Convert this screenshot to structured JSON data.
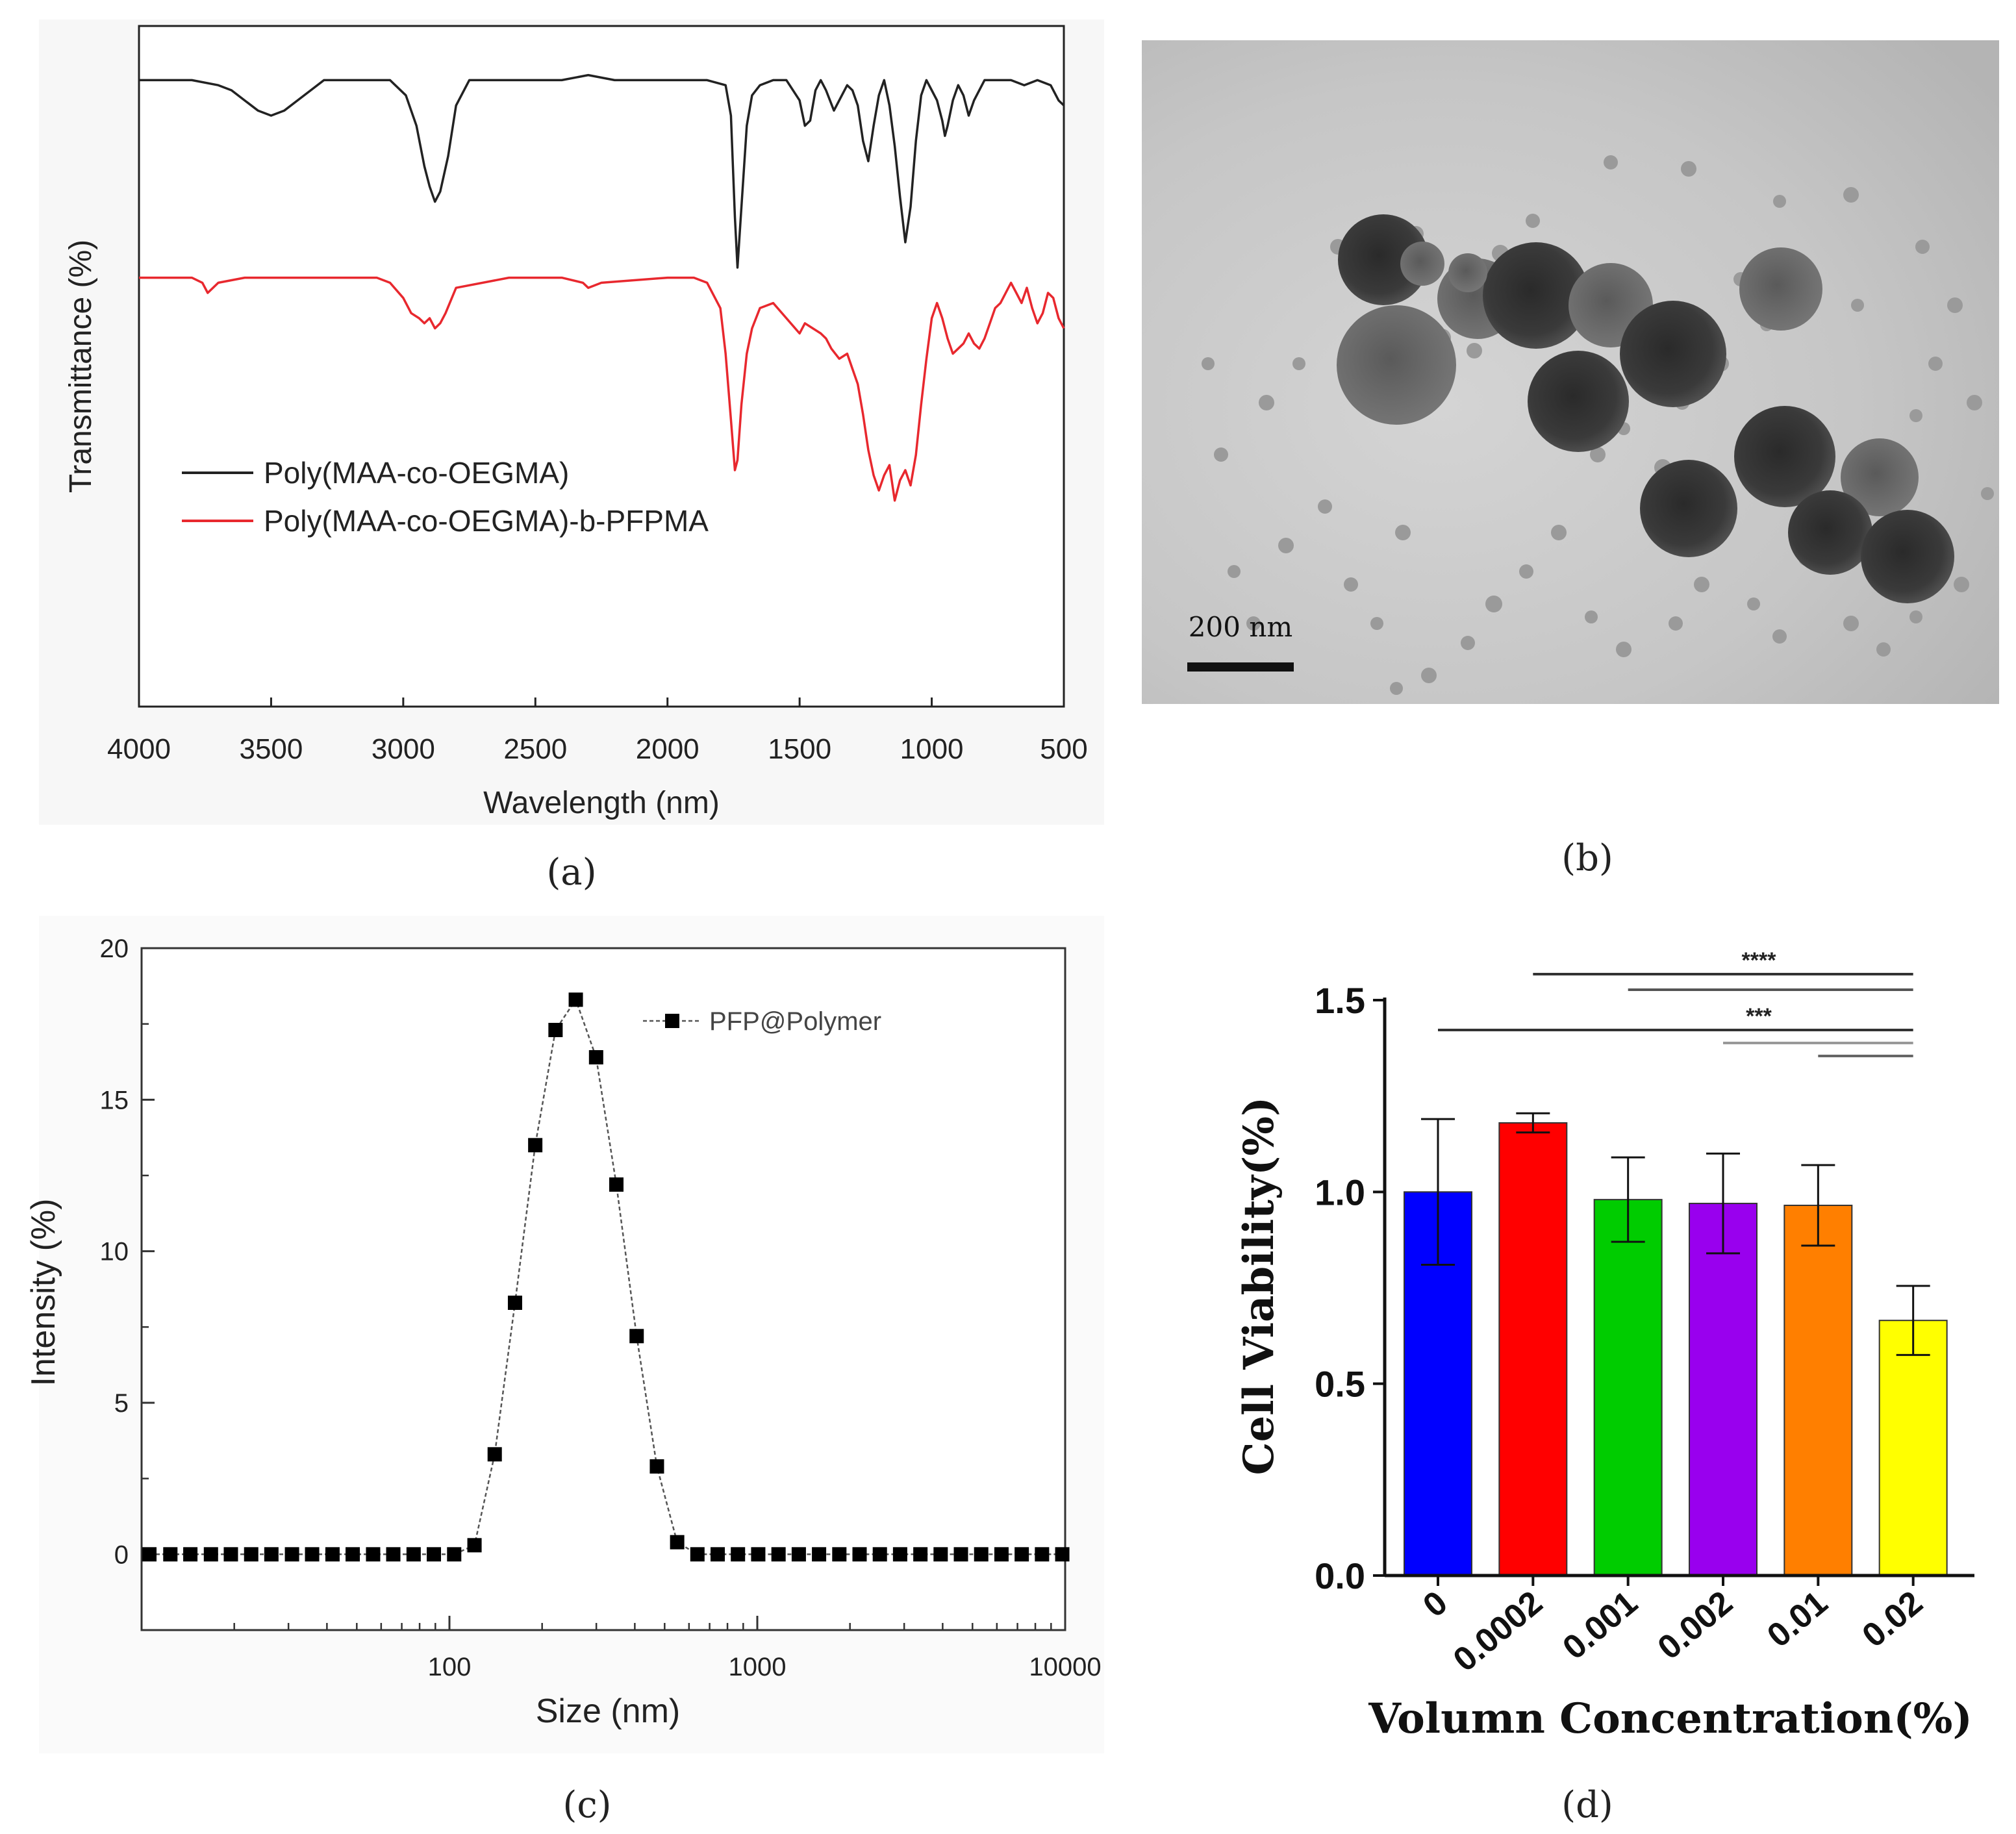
{
  "figure": {
    "panel_labels": [
      "(a)",
      "(b)",
      "(c)",
      "(d)"
    ]
  },
  "chart_data": [
    {
      "id": "a",
      "type": "line",
      "title": "",
      "xlabel": "Wavelength (nm)",
      "ylabel": "Transmittance (%)",
      "xlim": [
        4000,
        500
      ],
      "x_ticks": [
        4000,
        3500,
        3000,
        2500,
        2000,
        1500,
        1000,
        500
      ],
      "y_ticks_shown": false,
      "legend_position": "lower-left",
      "series": [
        {
          "name": "Poly(MAA-co-OEGMA)",
          "color": "#222222",
          "x": [
            4000,
            3800,
            3700,
            3650,
            3600,
            3550,
            3500,
            3450,
            3400,
            3350,
            3300,
            3200,
            3050,
            2990,
            2950,
            2920,
            2900,
            2880,
            2860,
            2830,
            2800,
            2750,
            2600,
            2400,
            2300,
            2200,
            2000,
            1850,
            1780,
            1760,
            1745,
            1735,
            1720,
            1700,
            1680,
            1650,
            1600,
            1550,
            1500,
            1480,
            1460,
            1440,
            1420,
            1400,
            1370,
            1340,
            1320,
            1300,
            1280,
            1260,
            1240,
            1220,
            1200,
            1180,
            1160,
            1140,
            1120,
            1100,
            1080,
            1060,
            1040,
            1020,
            1000,
            980,
            960,
            950,
            940,
            920,
            900,
            880,
            860,
            840,
            800,
            750,
            700,
            650,
            600,
            550,
            520,
            500
          ],
          "y": [
            97,
            97,
            96,
            95,
            93,
            91,
            90,
            91,
            93,
            95,
            97,
            97,
            97,
            94,
            88,
            80,
            76,
            73,
            75,
            82,
            92,
            97,
            97,
            97,
            98,
            97,
            97,
            97,
            96,
            90,
            70,
            60,
            72,
            88,
            94,
            96,
            97,
            97,
            93,
            88,
            89,
            95,
            97,
            95,
            91,
            94,
            96,
            95,
            92,
            85,
            81,
            88,
            94,
            97,
            92,
            84,
            74,
            65,
            72,
            85,
            94,
            97,
            95,
            93,
            89,
            86,
            88,
            93,
            96,
            94,
            90,
            93,
            97,
            97,
            97,
            96,
            97,
            96,
            93,
            92
          ]
        },
        {
          "name": "Poly(MAA-co-OEGMA)-b-PFPMA",
          "color": "#e8282e",
          "x": [
            4000,
            3800,
            3760,
            3740,
            3720,
            3700,
            3600,
            3400,
            3200,
            3100,
            3050,
            3000,
            2970,
            2940,
            2920,
            2900,
            2880,
            2860,
            2840,
            2800,
            2600,
            2400,
            2320,
            2300,
            2250,
            2000,
            1900,
            1850,
            1800,
            1780,
            1760,
            1745,
            1735,
            1720,
            1700,
            1680,
            1650,
            1600,
            1550,
            1500,
            1480,
            1450,
            1420,
            1400,
            1380,
            1350,
            1320,
            1300,
            1280,
            1260,
            1240,
            1220,
            1200,
            1180,
            1160,
            1140,
            1120,
            1100,
            1080,
            1060,
            1040,
            1020,
            1000,
            980,
            960,
            940,
            920,
            900,
            880,
            860,
            840,
            820,
            800,
            780,
            760,
            740,
            720,
            700,
            680,
            660,
            640,
            620,
            600,
            580,
            560,
            540,
            520,
            500
          ],
          "y": [
            58,
            58,
            57,
            55,
            56,
            57,
            58,
            58,
            58,
            58,
            57,
            54,
            51,
            50,
            49,
            50,
            48,
            49,
            51,
            56,
            58,
            58,
            57,
            56,
            57,
            58,
            58,
            57,
            52,
            43,
            30,
            20,
            22,
            33,
            43,
            48,
            52,
            53,
            50,
            47,
            49,
            48,
            47,
            46,
            44,
            42,
            43,
            40,
            37,
            31,
            24,
            19,
            16,
            19,
            21,
            14,
            18,
            20,
            17,
            23,
            33,
            42,
            50,
            53,
            50,
            46,
            43,
            44,
            45,
            47,
            45,
            44,
            46,
            49,
            52,
            53,
            55,
            57,
            55,
            53,
            56,
            52,
            49,
            51,
            55,
            54,
            50,
            48
          ]
        }
      ]
    },
    {
      "id": "b",
      "type": "image",
      "scale_bar_label": "200 nm"
    },
    {
      "id": "c",
      "type": "line",
      "title": "",
      "xlabel": "Size (nm)",
      "ylabel": "Intensity (%)",
      "x_scale": "log",
      "xlim": [
        10,
        10000
      ],
      "ylim": [
        -2.5,
        20
      ],
      "x_ticks": [
        100,
        1000,
        10000
      ],
      "y_ticks": [
        0,
        5,
        10,
        15,
        20
      ],
      "legend_position": "top-right",
      "series": [
        {
          "name": "PFP@Polymer",
          "color": "#000000",
          "x": [
            10.6,
            12.4,
            14.4,
            16.8,
            19.5,
            22.7,
            26.4,
            30.8,
            35.8,
            41.7,
            48.5,
            56.5,
            65.7,
            76.5,
            89.0,
            103.6,
            120.6,
            140.3,
            163.3,
            190.0,
            221.1,
            257.3,
            299.5,
            348.5,
            405.6,
            472.0,
            549.2,
            639.0,
            743.6,
            865.3,
            1007,
            1172,
            1364,
            1587,
            1847,
            2149,
            2501,
            2910,
            3387,
            3941,
            4586,
            5337,
            6211,
            7227,
            8410,
            9787
          ],
          "y": [
            0,
            0,
            0,
            0,
            0,
            0,
            0,
            0,
            0,
            0,
            0,
            0,
            0,
            0,
            0,
            0,
            0.3,
            3.3,
            8.3,
            13.5,
            17.3,
            18.3,
            16.4,
            12.2,
            7.2,
            2.9,
            0.4,
            0,
            0,
            0,
            0,
            0,
            0,
            0,
            0,
            0,
            0,
            0,
            0,
            0,
            0,
            0,
            0,
            0,
            0,
            0
          ]
        }
      ]
    },
    {
      "id": "d",
      "type": "bar",
      "title": "",
      "xlabel": "Volumn Concentration(%)",
      "ylabel": "Cell Viability(%)",
      "ylim": [
        0,
        1.5
      ],
      "y_ticks": [
        0.0,
        0.5,
        1.0,
        1.5
      ],
      "y_tick_labels": [
        "0.0",
        "0.5",
        "1.0",
        "1.5"
      ],
      "categories": [
        "0",
        "0.0002",
        "0.001",
        "0.002",
        "0.01",
        "0.02"
      ],
      "values": [
        1.0,
        1.18,
        0.98,
        0.97,
        0.965,
        0.665
      ],
      "errors": [
        0.19,
        0.025,
        0.11,
        0.13,
        0.105,
        0.09
      ],
      "colors": [
        "#0000ff",
        "#ff0000",
        "#00cc00",
        "#9900ee",
        "#ff7f00",
        "#ffff00"
      ],
      "significance": [
        {
          "from": 1,
          "to": 5,
          "label": "****"
        },
        {
          "from": 2,
          "to": 5,
          "label": ""
        },
        {
          "from": 0,
          "to": 5,
          "label": "***"
        },
        {
          "from": 3,
          "to": 5,
          "label": ""
        },
        {
          "from": 4,
          "to": 5,
          "label": ""
        }
      ]
    }
  ]
}
